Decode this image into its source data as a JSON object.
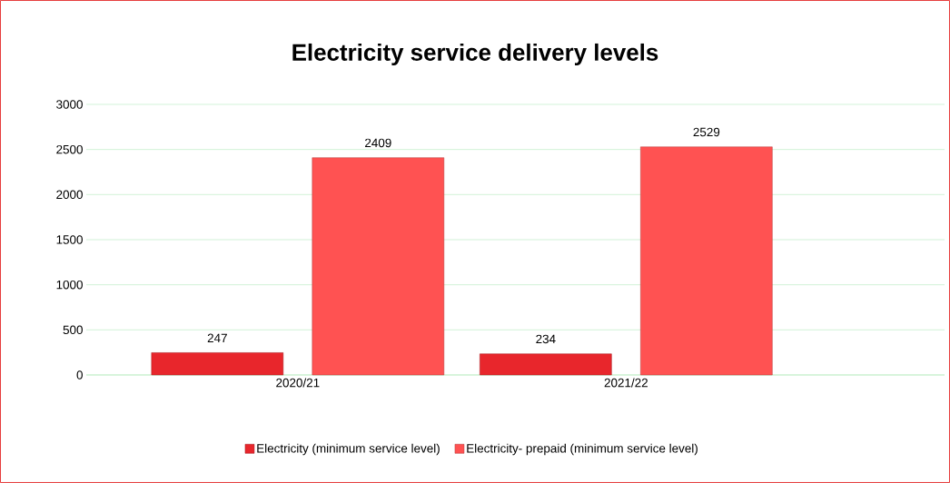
{
  "chart_data": {
    "type": "bar",
    "title": "Electricity service delivery levels",
    "categories": [
      "2020/21",
      "2021/22"
    ],
    "series": [
      {
        "name": "Electricity (minimum service level)",
        "color": "#e8262c",
        "values": [
          247,
          234
        ]
      },
      {
        "name": "Electricity- prepaid (minimum service level)",
        "color": "#ff5252",
        "values": [
          2409,
          2529
        ]
      }
    ],
    "ylim": [
      0,
      3000
    ],
    "yticks": [
      0,
      500,
      1000,
      1500,
      2000,
      2500,
      3000
    ],
    "grid": "y",
    "legend": "bottom",
    "data_labels": true
  }
}
